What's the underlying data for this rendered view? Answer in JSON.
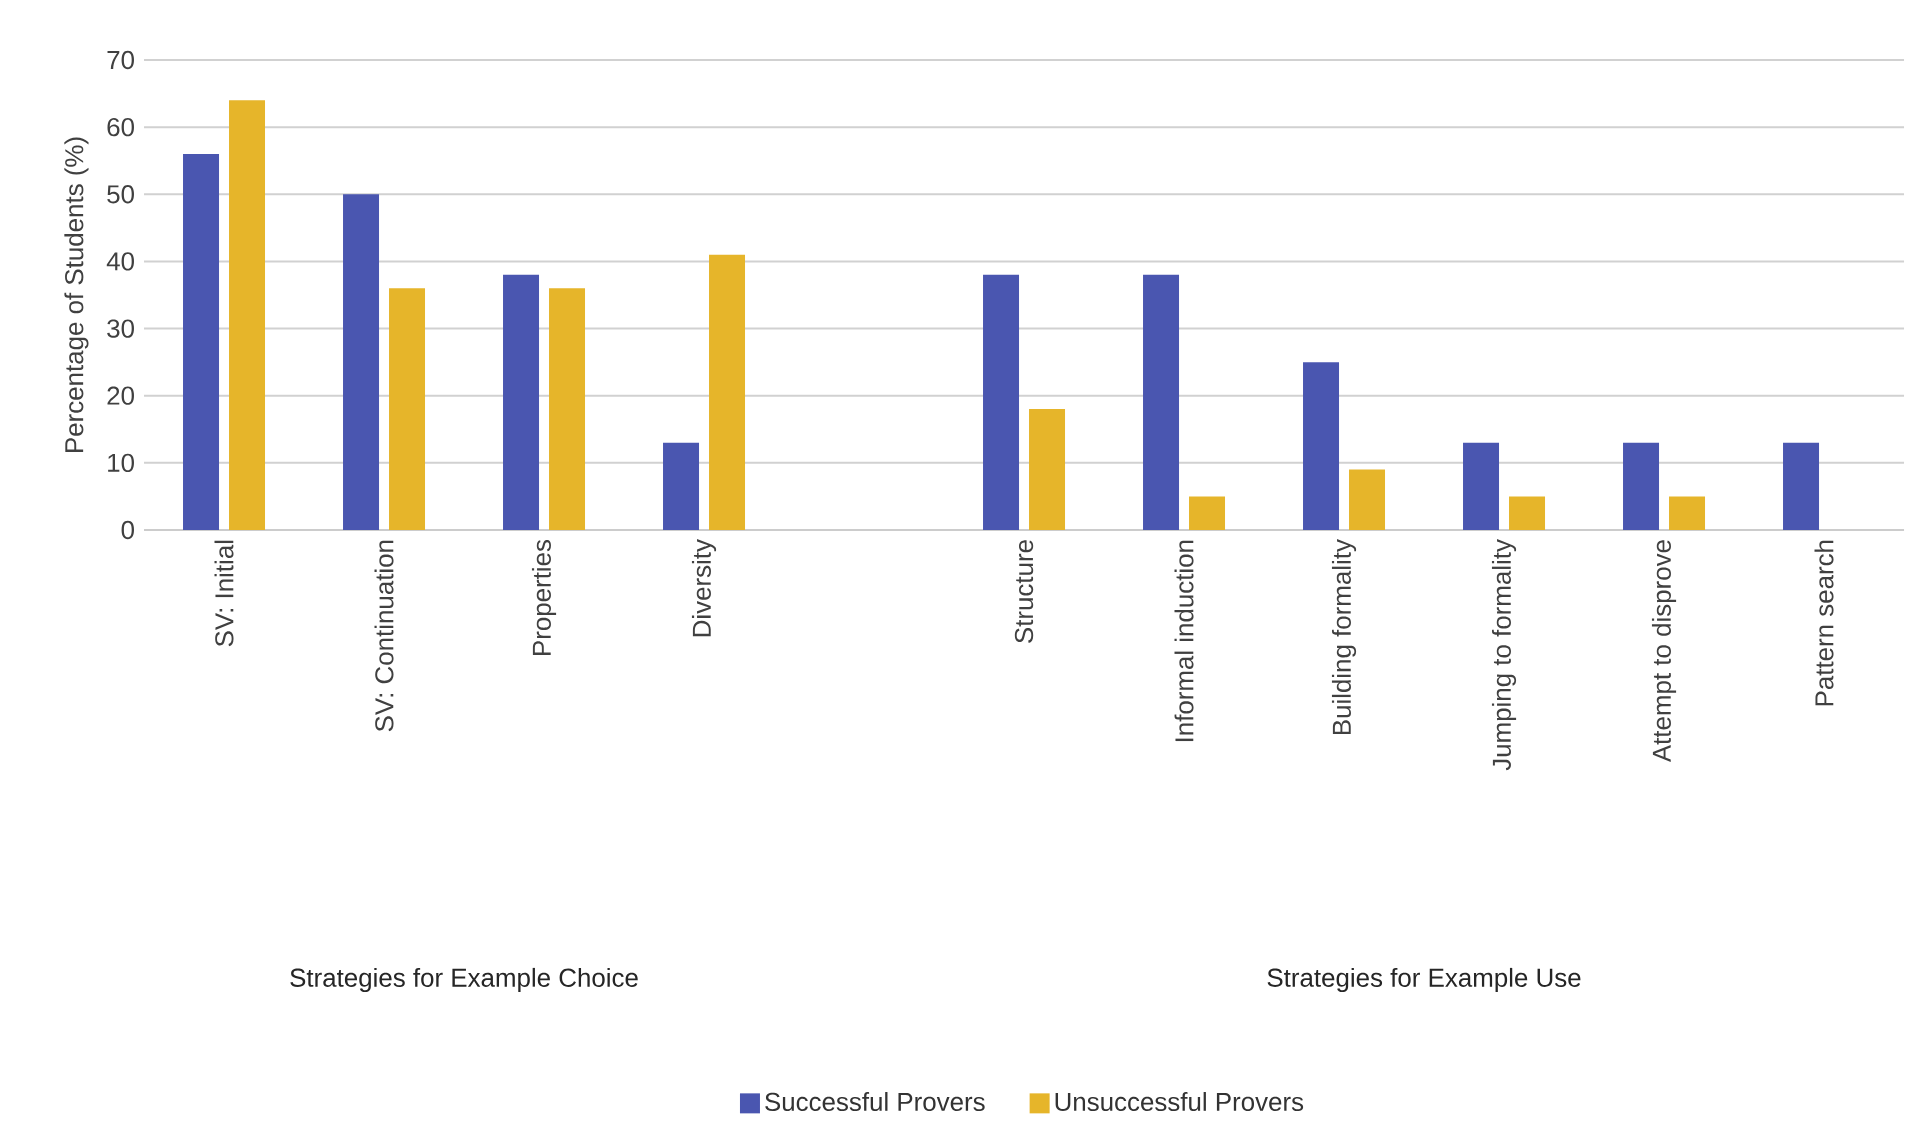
{
  "chart_data": {
    "type": "bar",
    "ylabel": "Percentage of Students (%)",
    "categories": [
      "SV: Initial",
      "SV: Continuation",
      "Properties",
      "Diversity",
      null,
      "Structure",
      "Informal induction",
      "Building formality",
      "Jumping to formality",
      "Attempt to disprove",
      "Pattern search"
    ],
    "series": [
      {
        "name": "Successful Provers",
        "color": "#4a56b0",
        "values": [
          56,
          50,
          38,
          13,
          null,
          38,
          38,
          25,
          13,
          13,
          13
        ]
      },
      {
        "name": "Unsuccessful Provers",
        "color": "#e6b52a",
        "values": [
          64,
          36,
          36,
          41,
          null,
          18,
          5,
          9,
          5,
          5,
          0
        ]
      }
    ],
    "ylim": [
      0,
      70
    ],
    "yticks": [
      0,
      10,
      20,
      30,
      40,
      50,
      60,
      70
    ],
    "grid": "y",
    "legend": "bottom",
    "annotations": [
      "Strategies for Example Choice",
      "Strategies for Example Use"
    ]
  }
}
